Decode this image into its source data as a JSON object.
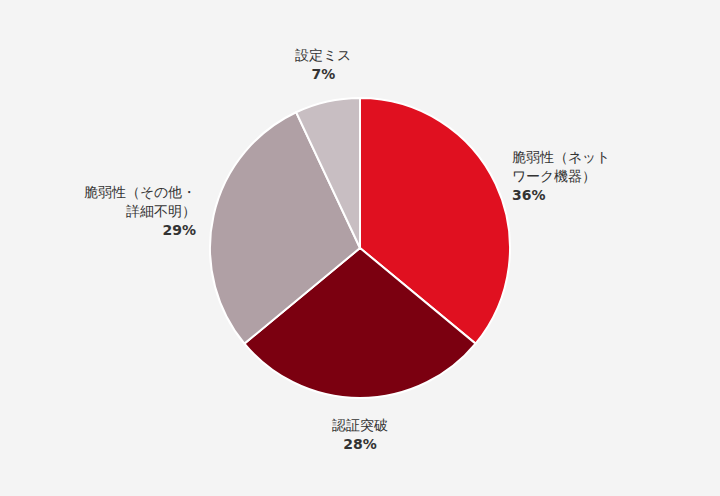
{
  "chart_data": {
    "type": "pie",
    "categories": [
      "脆弱性（ネット\nワーク機器）",
      "認証突破",
      "脆弱性（その他・\n詳細不明）",
      "設定ミス"
    ],
    "values": [
      36,
      28,
      29,
      7
    ],
    "value_labels": [
      "36%",
      "28%",
      "29%",
      "7%"
    ],
    "colors": [
      "#e01020",
      "#7b0010",
      "#b0a0a5",
      "#c8bec2"
    ],
    "data_labels": true
  }
}
